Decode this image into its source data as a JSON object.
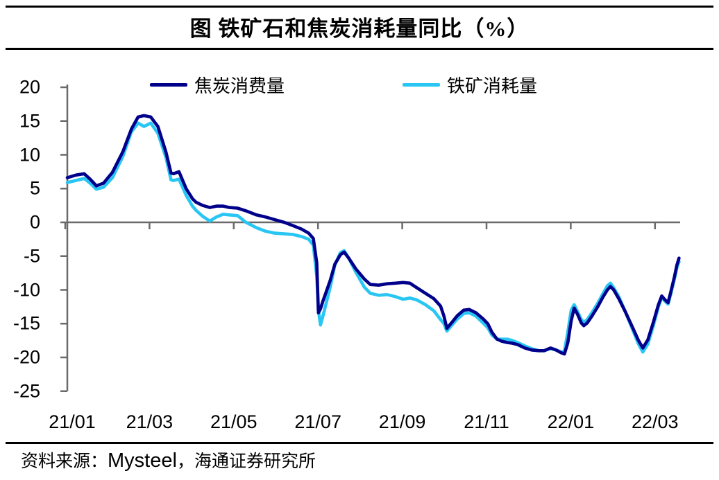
{
  "title": "图  铁矿石和焦炭消耗量同比（%）",
  "source": {
    "prefix": "资料来源：",
    "vendor": "Mysteel",
    "suffix": "，海通证券研究所"
  },
  "colors": {
    "coke": "#00008B",
    "iron": "#29C6F4",
    "axis": "#6A6A6A",
    "text": "#000000"
  },
  "chart_data": {
    "type": "line",
    "title": "图 铁矿石和焦炭消耗量同比（%）",
    "ylabel": "同比（%）",
    "ylim": [
      -25,
      20
    ],
    "ytick_interval": 5,
    "ytick_labels": [
      "20",
      "15",
      "10",
      "5",
      "0",
      "-5",
      "-10",
      "-15",
      "-20",
      "-25"
    ],
    "x_unit": "months since 2021-01",
    "xlim": [
      0,
      14.62
    ],
    "xtick_positions": [
      0,
      2,
      4,
      6,
      8,
      10,
      12,
      14
    ],
    "xtick_labels": [
      "21/01",
      "21/03",
      "21/05",
      "21/07",
      "21/09",
      "21/11",
      "22/01",
      "22/03"
    ],
    "grid": false,
    "legend_position": "top-center",
    "x": [
      0.05,
      0.25,
      0.45,
      0.59,
      0.74,
      0.91,
      1.12,
      1.37,
      1.57,
      1.73,
      1.87,
      2.03,
      2.2,
      2.39,
      2.51,
      2.57,
      2.7,
      2.87,
      3.02,
      3.1,
      3.26,
      3.43,
      3.59,
      3.75,
      3.9,
      4.09,
      4.29,
      4.54,
      4.75,
      4.97,
      5.2,
      5.41,
      5.61,
      5.78,
      5.89,
      5.97,
      6.01,
      6.06,
      6.12,
      6.29,
      6.4,
      6.53,
      6.62,
      6.73,
      6.9,
      7.1,
      7.24,
      7.44,
      7.64,
      7.84,
      8.02,
      8.18,
      8.35,
      8.55,
      8.75,
      8.91,
      8.99,
      9.06,
      9.18,
      9.31,
      9.46,
      9.59,
      9.75,
      9.92,
      10.03,
      10.13,
      10.25,
      10.36,
      10.5,
      10.61,
      10.74,
      10.91,
      11.07,
      11.24,
      11.37,
      11.52,
      11.65,
      11.77,
      11.85,
      11.93,
      12.01,
      12.08,
      12.16,
      12.25,
      12.31,
      12.39,
      12.51,
      12.64,
      12.77,
      12.87,
      12.94,
      13.02,
      13.14,
      13.3,
      13.47,
      13.6,
      13.71,
      13.83,
      13.96,
      14.08,
      14.16,
      14.24,
      14.31,
      14.37,
      14.46,
      14.52,
      14.57
    ],
    "series": [
      {
        "name": "焦炭消费量",
        "color": "#00008B",
        "values": [
          6.6,
          7.0,
          7.2,
          6.4,
          5.4,
          5.8,
          7.4,
          10.5,
          13.8,
          15.6,
          15.8,
          15.6,
          14.2,
          10.4,
          7.3,
          7.2,
          7.5,
          5.0,
          3.5,
          3.0,
          2.5,
          2.2,
          2.4,
          2.4,
          2.2,
          2.1,
          1.7,
          1.1,
          0.8,
          0.4,
          0.0,
          -0.5,
          -1.0,
          -1.6,
          -2.4,
          -6.0,
          -13.4,
          -12.8,
          -11.6,
          -8.6,
          -6.2,
          -4.8,
          -4.4,
          -5.3,
          -6.9,
          -8.4,
          -9.2,
          -9.3,
          -9.1,
          -9.0,
          -8.9,
          -9.0,
          -9.7,
          -10.5,
          -11.3,
          -12.4,
          -13.9,
          -15.7,
          -14.8,
          -13.8,
          -13.0,
          -12.9,
          -13.4,
          -14.3,
          -15.0,
          -16.3,
          -17.3,
          -17.6,
          -17.8,
          -17.9,
          -18.1,
          -18.6,
          -18.9,
          -19.0,
          -19.0,
          -18.6,
          -18.9,
          -19.3,
          -19.5,
          -17.8,
          -14.6,
          -12.7,
          -13.6,
          -14.9,
          -15.3,
          -14.9,
          -13.8,
          -12.5,
          -11.0,
          -10.0,
          -9.5,
          -10.0,
          -11.3,
          -13.3,
          -15.6,
          -17.4,
          -18.6,
          -17.4,
          -14.8,
          -12.2,
          -10.9,
          -11.5,
          -11.9,
          -10.4,
          -8.1,
          -6.3,
          -5.3
        ]
      },
      {
        "name": "铁矿消耗量",
        "color": "#29C6F4",
        "values": [
          5.9,
          6.2,
          6.5,
          5.8,
          4.9,
          5.2,
          6.6,
          9.8,
          13.4,
          14.7,
          14.2,
          14.7,
          13.2,
          9.6,
          6.3,
          6.2,
          6.4,
          4.0,
          2.4,
          1.8,
          0.9,
          0.2,
          0.8,
          1.2,
          1.1,
          1.0,
          0.0,
          -0.8,
          -1.3,
          -1.6,
          -1.7,
          -1.8,
          -2.1,
          -2.5,
          -3.4,
          -8.0,
          -13.0,
          -15.2,
          -13.8,
          -9.6,
          -6.3,
          -4.5,
          -4.2,
          -5.3,
          -7.4,
          -9.6,
          -10.5,
          -10.8,
          -10.7,
          -11.0,
          -11.4,
          -11.2,
          -11.5,
          -12.2,
          -13.1,
          -14.4,
          -15.0,
          -16.1,
          -15.2,
          -14.3,
          -13.5,
          -13.4,
          -13.9,
          -14.9,
          -15.6,
          -16.7,
          -17.3,
          -17.3,
          -17.3,
          -17.5,
          -17.8,
          -18.3,
          -18.7,
          -19.0,
          -19.0,
          -18.7,
          -18.9,
          -19.2,
          -19.1,
          -16.2,
          -13.0,
          -12.2,
          -13.2,
          -14.4,
          -14.8,
          -14.4,
          -13.3,
          -12.0,
          -10.5,
          -9.4,
          -9.0,
          -9.7,
          -11.0,
          -13.3,
          -15.9,
          -17.9,
          -19.2,
          -18.0,
          -15.3,
          -12.5,
          -11.1,
          -11.7,
          -12.1,
          -10.7,
          -8.4,
          -6.7,
          -5.8
        ]
      }
    ]
  }
}
